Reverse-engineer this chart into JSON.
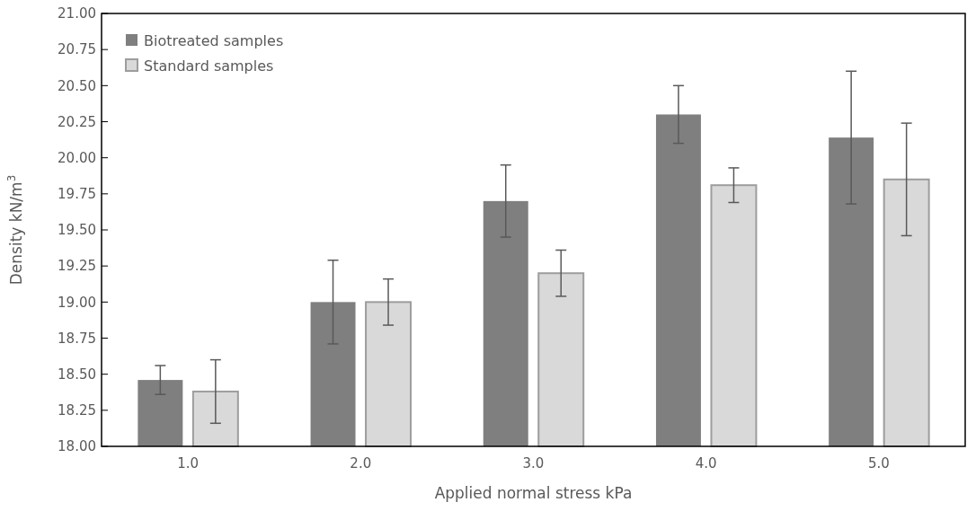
{
  "chart_data": {
    "type": "bar",
    "xlabel": "Applied normal stress kPa",
    "ylabel": "Density kN/m$^{3}$",
    "categories": [
      "1.0",
      "2.0",
      "3.0",
      "4.0",
      "5.0"
    ],
    "series": [
      {
        "name": "Biotreated samples",
        "color": "#7f7f7f",
        "values": [
          18.46,
          19.0,
          19.7,
          20.3,
          20.14
        ],
        "errors": [
          0.1,
          0.29,
          0.25,
          0.2,
          0.46
        ]
      },
      {
        "name": "Standard samples",
        "color": "#d9d9d9",
        "values": [
          18.38,
          19.0,
          19.2,
          19.81,
          19.85
        ],
        "errors": [
          0.22,
          0.16,
          0.16,
          0.12,
          0.39
        ]
      }
    ],
    "ylim": [
      18,
      21
    ],
    "yticks": [
      {
        "value": 18,
        "label": "18.00"
      },
      {
        "value": 18.25,
        "label": "18.25"
      },
      {
        "value": 18.5,
        "label": "18.50"
      },
      {
        "value": 18.75,
        "label": "18.75"
      },
      {
        "value": 19,
        "label": "19.00"
      },
      {
        "value": 19.25,
        "label": "19.25"
      },
      {
        "value": 19.5,
        "label": "19.50"
      },
      {
        "value": 19.75,
        "label": "19.75"
      },
      {
        "value": 20,
        "label": "20.00"
      },
      {
        "value": 20.25,
        "label": "20.25"
      },
      {
        "value": 20.5,
        "label": "20.50"
      },
      {
        "value": 20.75,
        "label": "20.75"
      },
      {
        "value": 21,
        "label": "21.00"
      }
    ],
    "legend": "top left"
  }
}
